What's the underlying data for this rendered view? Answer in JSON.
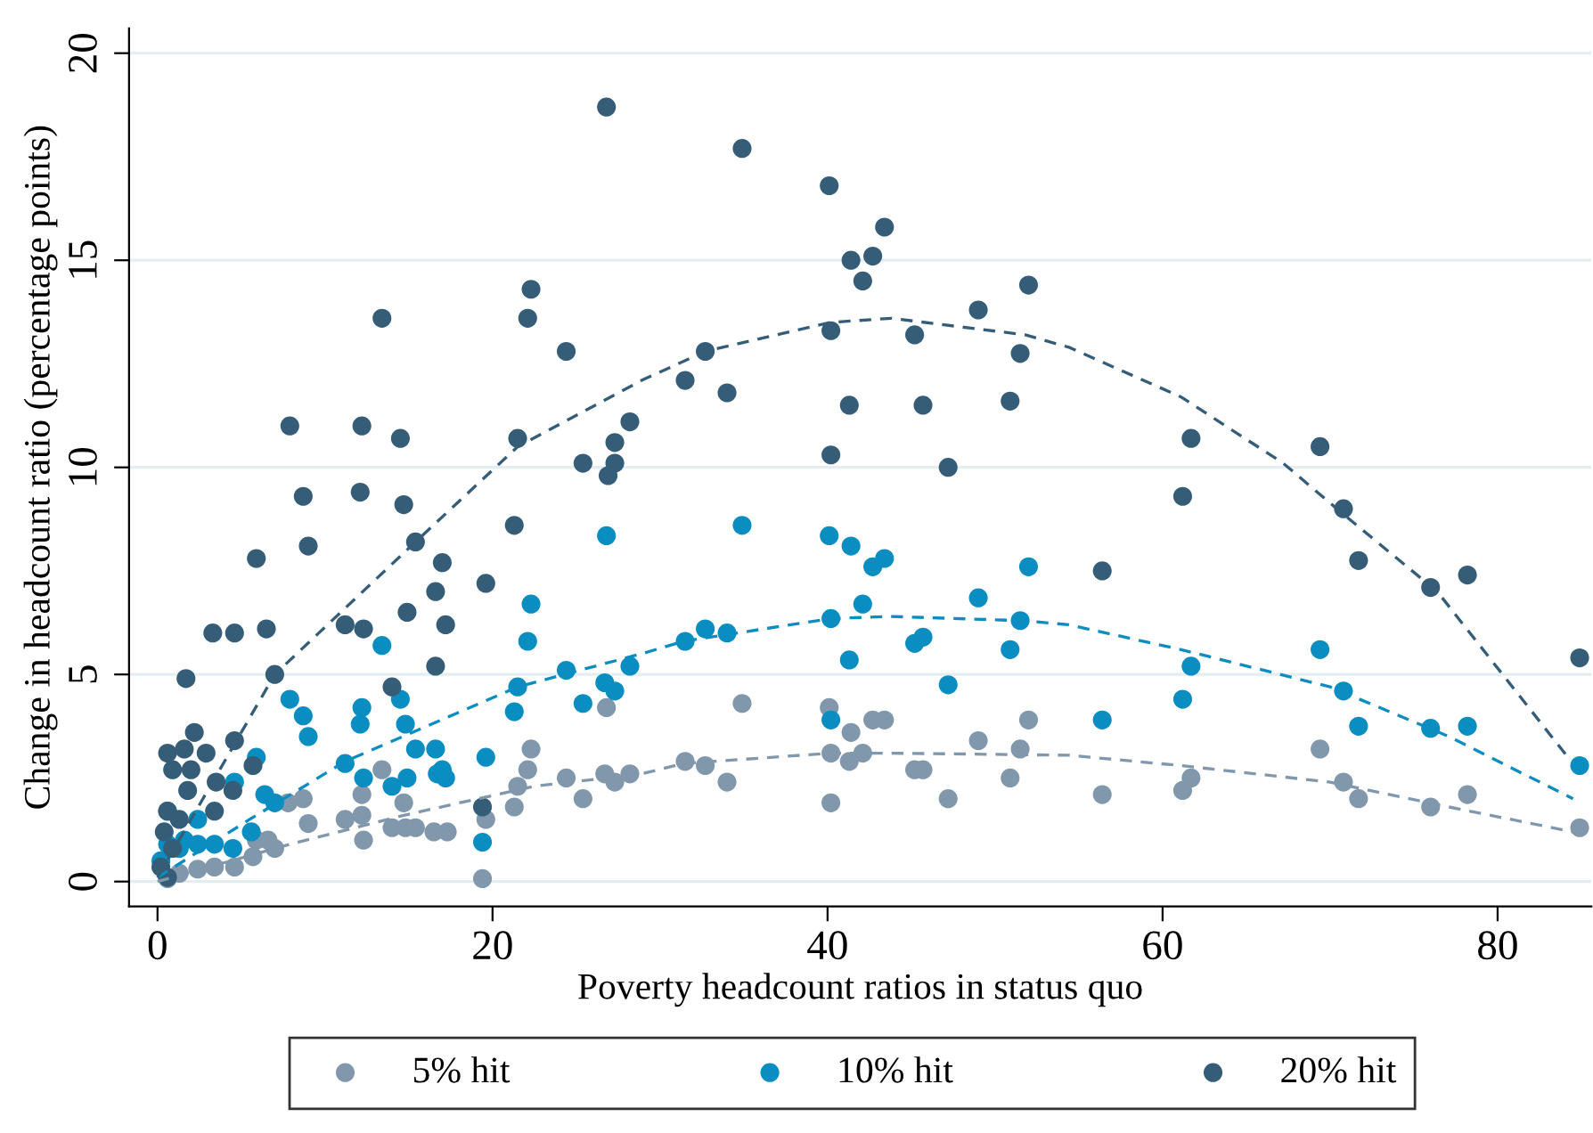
{
  "chart_data": {
    "type": "scatter",
    "xlabel": "Poverty headcount ratios in status quo",
    "ylabel": "Change in headcount ratio (percentage points)",
    "xlim": [
      -1.7,
      85.6
    ],
    "ylim": [
      -0.6,
      20.6
    ],
    "xticks": [
      0,
      20,
      40,
      60,
      80
    ],
    "yticks": [
      0,
      5,
      10,
      15,
      20
    ],
    "grid": "y",
    "legend": "bottom",
    "series": [
      {
        "name": "5% hit",
        "color": "#8197ab",
        "marker": "circle",
        "x": [
          26.8,
          22.3,
          22.1,
          21.5,
          21.3,
          24.4,
          25.4,
          26.7,
          27.3,
          28.2,
          19.4,
          19.6,
          13.4,
          12.2,
          12.3,
          11.2,
          12.2,
          14.0,
          14.7,
          14.8,
          15.4,
          16.5,
          17.3,
          9.0,
          7.8,
          8.7,
          5.7,
          7.0,
          6.6,
          4.6,
          3.4,
          2.4,
          1.3,
          0.6,
          5.9,
          34.9,
          40.1,
          42.7,
          43.4,
          41.4,
          52.0,
          49.0,
          40.2,
          42.1,
          41.3,
          51.5,
          45.2,
          45.7,
          31.5,
          32.7,
          34.0,
          40.2,
          47.2,
          50.9,
          56.4,
          61.2,
          61.7,
          69.4,
          70.8,
          71.7,
          76.0,
          78.2,
          84.9
        ],
        "values": [
          4.2,
          3.2,
          2.7,
          2.3,
          1.8,
          2.5,
          2.0,
          2.6,
          2.4,
          2.6,
          0.07,
          1.5,
          2.7,
          2.1,
          1.0,
          1.5,
          1.6,
          1.3,
          1.9,
          1.3,
          1.3,
          1.2,
          1.2,
          1.4,
          1.9,
          2.0,
          0.6,
          0.8,
          1.0,
          0.35,
          0.35,
          0.3,
          0.2,
          0.07,
          1.0,
          4.3,
          4.2,
          3.9,
          3.9,
          3.6,
          3.9,
          3.4,
          3.1,
          3.1,
          2.9,
          3.2,
          2.7,
          2.7,
          2.9,
          2.8,
          2.4,
          1.9,
          2.0,
          2.5,
          2.1,
          2.2,
          2.5,
          3.2,
          2.4,
          2.0,
          1.8,
          2.1,
          1.3
        ]
      },
      {
        "name": "10% hit",
        "color": "#0a8dc0",
        "marker": "circle",
        "x": [
          26.8,
          22.3,
          22.1,
          13.4,
          24.4,
          28.2,
          7.9,
          8.7,
          9.0,
          12.2,
          12.1,
          14.5,
          14.8,
          15.4,
          16.6,
          16.7,
          17.2,
          17.0,
          11.2,
          12.3,
          14.0,
          14.9,
          19.6,
          19.4,
          21.5,
          21.3,
          25.4,
          26.7,
          27.3,
          5.9,
          6.4,
          7.0,
          5.6,
          4.6,
          0.6,
          2.4,
          3.4,
          4.5,
          1.3,
          0.6,
          2.4,
          0.2,
          1.6,
          34.9,
          40.1,
          41.4,
          42.7,
          43.4,
          52.0,
          49.0,
          42.1,
          40.2,
          32.7,
          34.0,
          31.5,
          41.3,
          45.2,
          45.7,
          51.5,
          50.9,
          47.2,
          40.2,
          61.7,
          61.2,
          69.4,
          70.8,
          71.7,
          56.4,
          76.0,
          78.2,
          84.9
        ],
        "values": [
          8.35,
          6.7,
          5.8,
          5.7,
          5.1,
          5.2,
          4.4,
          4.0,
          3.5,
          4.2,
          3.8,
          4.4,
          3.8,
          3.2,
          3.2,
          2.6,
          2.5,
          2.7,
          2.85,
          2.5,
          2.3,
          2.5,
          3.0,
          0.95,
          4.7,
          4.1,
          4.3,
          4.8,
          4.6,
          3.0,
          2.1,
          1.9,
          1.2,
          2.4,
          1.7,
          1.5,
          0.9,
          0.8,
          0.8,
          0.9,
          0.9,
          0.5,
          1.0,
          8.6,
          8.35,
          8.1,
          7.6,
          7.8,
          7.6,
          6.85,
          6.7,
          6.35,
          6.1,
          6.0,
          5.8,
          5.35,
          5.75,
          5.9,
          6.3,
          5.6,
          4.75,
          3.9,
          5.2,
          4.4,
          5.6,
          4.6,
          3.75,
          3.9,
          3.7,
          3.75,
          2.8
        ]
      },
      {
        "name": "20% hit",
        "color": "#365d78",
        "marker": "circle",
        "x": [
          26.8,
          22.3,
          22.1,
          13.4,
          24.4,
          28.2,
          7.9,
          12.2,
          14.5,
          21.5,
          27.3,
          25.4,
          27.3,
          26.9,
          8.7,
          12.1,
          14.7,
          9.0,
          15.4,
          21.3,
          5.9,
          17.0,
          16.6,
          19.6,
          14.9,
          17.2,
          3.3,
          4.6,
          6.5,
          11.2,
          12.3,
          16.6,
          1.7,
          7.0,
          14.0,
          2.2,
          4.6,
          0.6,
          1.6,
          2.9,
          0.9,
          2.0,
          5.7,
          3.5,
          19.4,
          1.8,
          4.5,
          0.6,
          1.3,
          3.4,
          0.4,
          0.9,
          0.2,
          0.6,
          34.9,
          40.1,
          43.4,
          41.4,
          42.7,
          42.1,
          52.0,
          49.0,
          40.2,
          45.2,
          51.5,
          32.7,
          31.5,
          34.0,
          41.3,
          45.7,
          50.9,
          40.2,
          47.2,
          61.7,
          69.4,
          61.2,
          70.8,
          71.7,
          56.4,
          76.0,
          78.2,
          84.9
        ],
        "values": [
          18.7,
          14.3,
          13.6,
          13.6,
          12.8,
          11.1,
          11.0,
          11.0,
          10.7,
          10.7,
          10.6,
          10.1,
          10.1,
          9.8,
          9.3,
          9.4,
          9.1,
          8.1,
          8.2,
          8.6,
          7.8,
          7.7,
          7.0,
          7.2,
          6.5,
          6.2,
          6.0,
          6.0,
          6.1,
          6.2,
          6.1,
          5.2,
          4.9,
          5.0,
          4.7,
          3.6,
          3.4,
          3.1,
          3.2,
          3.1,
          2.7,
          2.7,
          2.8,
          2.4,
          1.8,
          2.2,
          2.2,
          1.7,
          1.5,
          1.7,
          1.2,
          0.8,
          0.35,
          0.1,
          17.7,
          16.8,
          15.8,
          15.0,
          15.1,
          14.5,
          14.4,
          13.8,
          13.3,
          13.2,
          12.75,
          12.8,
          12.1,
          11.8,
          11.5,
          11.5,
          11.6,
          10.3,
          10.0,
          10.7,
          10.5,
          9.3,
          9.0,
          7.75,
          7.5,
          7.1,
          7.4,
          5.4
        ]
      },
      {
        "type": "line",
        "line_style": "dashed",
        "color": "#8197ab",
        "x": [
          0,
          7.9,
          14.7,
          22.5,
          28.9,
          31.4,
          40.2,
          43.8,
          54.4,
          61.1,
          70,
          77.1,
          84.5
        ],
        "values": [
          0,
          0.9,
          1.6,
          2.3,
          2.6,
          2.85,
          3.1,
          3.1,
          3.05,
          2.8,
          2.4,
          1.8,
          1.2
        ]
      },
      {
        "type": "line",
        "line_style": "dashed",
        "color": "#0a8dc0",
        "x": [
          0,
          5.5,
          11.2,
          21.5,
          28.9,
          31.4,
          40.2,
          43.8,
          51.6,
          54.4,
          61.1,
          70,
          77.1,
          84.5
        ],
        "values": [
          0.1,
          1.5,
          2.9,
          4.7,
          5.5,
          5.8,
          6.35,
          6.4,
          6.3,
          6.2,
          5.6,
          4.7,
          3.5,
          2.0
        ]
      },
      {
        "type": "line",
        "line_style": "dashed",
        "color": "#365d78",
        "x": [
          0,
          7,
          15.4,
          21.5,
          28.9,
          32.7,
          40.2,
          43.8,
          51.8,
          54.4,
          61.1,
          67.2,
          70.7,
          76.4,
          84.2
        ],
        "values": [
          0.1,
          5.0,
          8.2,
          10.5,
          12.1,
          12.8,
          13.5,
          13.6,
          13.2,
          12.9,
          11.7,
          10.1,
          8.9,
          7.0,
          3.0
        ]
      }
    ]
  }
}
